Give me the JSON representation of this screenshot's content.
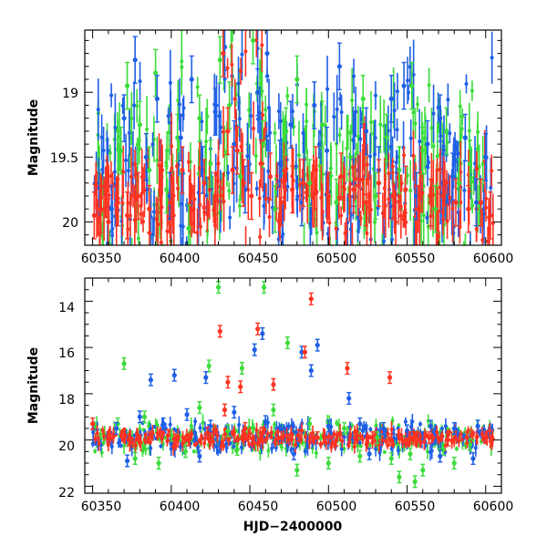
{
  "chart_data": [
    {
      "type": "scatter",
      "title": "",
      "xlabel": "",
      "ylabel": "Magnitude",
      "xlim": [
        60345,
        60610
      ],
      "ylim": [
        20.18,
        18.52
      ],
      "y_inverted": true,
      "error_bars": true,
      "grid": false,
      "x_ticks": [
        60350,
        60400,
        60450,
        60500,
        60550,
        60600
      ],
      "y_ticks": [
        19,
        19.5,
        20
      ],
      "x_tick_labels": [
        "60350",
        "60400",
        "60450",
        "60500",
        "60550",
        "60600"
      ],
      "y_tick_labels": [
        "19",
        "19.5",
        "20"
      ],
      "series_colors": [
        "#3cdc3c",
        "#1e5fe6",
        "#ff3322"
      ],
      "series": [
        {
          "color": "#3cdc3c",
          "x": [
            60368,
            60372,
            60380,
            60386,
            60390,
            60397,
            60404,
            60411,
            60418,
            60425,
            60431,
            60437,
            60444,
            60452,
            60458,
            60466,
            60473,
            60480,
            60488,
            60496,
            60505,
            60514,
            60522,
            60530,
            60537,
            60545,
            60553,
            60560,
            60568,
            60575,
            60583,
            60590,
            60596
          ],
          "y": [
            19.45,
            18.95,
            19.25,
            19.6,
            18.85,
            19.75,
            19.35,
            20.05,
            19.2,
            19.55,
            18.75,
            19.1,
            19.65,
            18.6,
            19.4,
            19.9,
            19.3,
            18.9,
            19.7,
            19.25,
            19.85,
            19.5,
            19.05,
            19.8,
            19.35,
            19.6,
            18.95,
            19.45,
            19.9,
            19.3,
            19.7,
            19.55,
            19.85
          ]
        },
        {
          "color": "#1e5fe6",
          "x": [
            60362,
            60370,
            60377,
            60384,
            60391,
            60399,
            60406,
            60413,
            60420,
            60428,
            60434,
            60440,
            60447,
            60455,
            60461,
            60469,
            60476,
            60483,
            60491,
            60499,
            60507,
            60516,
            60524,
            60532,
            60540,
            60548,
            60556,
            60563,
            60571,
            60579,
            60587,
            60594,
            60600
          ],
          "y": [
            19.9,
            19.2,
            18.75,
            19.5,
            19.05,
            19.8,
            19.35,
            18.9,
            19.6,
            19.15,
            18.65,
            19.4,
            19.75,
            19.0,
            18.7,
            19.55,
            19.25,
            19.85,
            19.1,
            19.45,
            18.8,
            19.7,
            19.3,
            19.6,
            19.05,
            18.95,
            19.8,
            19.4,
            19.2,
            19.65,
            19.35,
            19.85,
            19.5
          ]
        },
        {
          "color": "#ff3322",
          "x": [
            60351,
            60355,
            60360,
            60366,
            60372,
            60379,
            60386,
            60393,
            60400,
            60407,
            60414,
            60421,
            60428,
            60433,
            60436,
            60439,
            60442,
            60446,
            60451,
            60457,
            60463,
            60470,
            60477,
            60484,
            60492,
            60500,
            60508,
            60516,
            60524,
            60532,
            60541,
            60549,
            60557,
            60565,
            60573,
            60581,
            60589,
            60597,
            60603
          ],
          "y": [
            19.95,
            19.9,
            20.0,
            19.85,
            19.95,
            19.8,
            19.9,
            19.75,
            19.85,
            19.6,
            19.9,
            19.7,
            19.8,
            18.7,
            19.3,
            19.6,
            19.45,
            19.7,
            19.8,
            19.55,
            19.65,
            19.85,
            19.75,
            19.7,
            19.6,
            19.8,
            19.65,
            19.75,
            19.85,
            19.7,
            19.8,
            19.75,
            19.9,
            19.85,
            19.8,
            19.85,
            19.9,
            19.85,
            19.95
          ]
        }
      ]
    },
    {
      "type": "scatter",
      "title": "",
      "xlabel": "HJD−2400000",
      "ylabel": "Magnitude",
      "xlim": [
        60345,
        60610
      ],
      "ylim": [
        22.3,
        13.0
      ],
      "y_inverted": true,
      "error_bars": true,
      "grid": false,
      "x_ticks": [
        60350,
        60400,
        60450,
        60500,
        60550,
        60600
      ],
      "y_ticks": [
        14,
        16,
        18,
        20,
        22
      ],
      "x_tick_labels": [
        "60350",
        "60400",
        "60450",
        "60500",
        "60550",
        "60600"
      ],
      "y_tick_labels": [
        "14",
        "16",
        "18",
        "20",
        "22"
      ],
      "series_colors": [
        "#3cdc3c",
        "#1e5fe6",
        "#ff3322"
      ],
      "series": [
        {
          "color": "#3cdc3c",
          "x": [
            60370,
            60430,
            60459,
            60424,
            60474,
            60445,
            60366,
            60383,
            60400,
            60418,
            60436,
            60465,
            60488,
            60510,
            60531,
            60552,
            60573,
            60590,
            60377,
            60392,
            60409,
            60442,
            60480,
            60500,
            60520,
            60540,
            60560,
            60580,
            60545,
            60555
          ],
          "y": [
            16.7,
            13.4,
            13.4,
            16.8,
            15.8,
            16.9,
            19.3,
            19.0,
            19.8,
            18.6,
            19.6,
            18.7,
            19.3,
            19.5,
            19.9,
            20.6,
            20.4,
            20.2,
            20.8,
            21.0,
            20.5,
            20.4,
            21.3,
            21.0,
            20.7,
            20.8,
            21.3,
            21.0,
            21.6,
            21.8
          ]
        },
        {
          "color": "#1e5fe6",
          "x": [
            60387,
            60402,
            60422,
            60453,
            60458,
            60483,
            60489,
            60493,
            60513,
            60365,
            60380,
            60395,
            60410,
            60425,
            60440,
            60460,
            60470,
            60500,
            60520,
            60535,
            60550,
            60565,
            60580,
            60595,
            60372,
            60418,
            60478,
            60526,
            60571,
            60592
          ],
          "y": [
            17.4,
            17.2,
            17.3,
            16.1,
            15.4,
            16.2,
            17.0,
            15.9,
            18.2,
            19.5,
            19.0,
            19.3,
            18.9,
            19.4,
            18.8,
            19.2,
            19.6,
            19.4,
            19.3,
            19.5,
            19.6,
            19.4,
            19.5,
            19.4,
            20.9,
            20.7,
            20.6,
            20.6,
            20.7,
            20.8
          ]
        },
        {
          "color": "#ff3322",
          "x": [
            60489,
            60431,
            60455,
            60485,
            60512,
            60539,
            60436,
            60444,
            60465,
            60350,
            60360,
            60373,
            60386,
            60398,
            60411,
            60423,
            60434,
            60447,
            60458,
            60470,
            60481,
            60493,
            60505,
            60517,
            60528,
            60540,
            60552,
            60564,
            60576,
            60588,
            60600
          ],
          "y": [
            13.9,
            15.3,
            15.2,
            16.2,
            16.9,
            17.3,
            17.5,
            17.7,
            17.6,
            19.3,
            19.9,
            20.0,
            19.9,
            19.8,
            20.0,
            19.7,
            18.7,
            19.5,
            19.7,
            19.9,
            19.8,
            19.9,
            20.0,
            19.9,
            19.9,
            20.0,
            19.9,
            19.9,
            20.0,
            19.9,
            19.9
          ]
        }
      ]
    }
  ]
}
